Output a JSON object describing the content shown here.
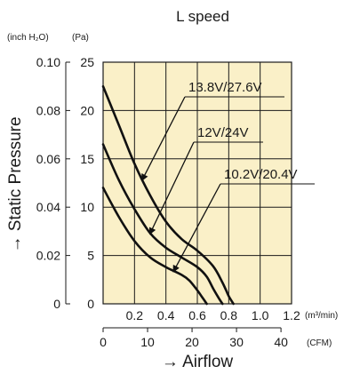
{
  "chart_data": {
    "type": "line",
    "title": "L speed",
    "ylabel": "→ Static Pressure",
    "xlabel": "→ Airflow",
    "y_units": {
      "inch": "(inch H₂O)",
      "pa": "(Pa)"
    },
    "x_units": {
      "m3": "(m³/min)",
      "cfm": "(CFM)"
    },
    "y_inch_ticks": [
      "0.10",
      "0.08",
      "0.06",
      "0.04",
      "0.02",
      "0"
    ],
    "y_pa_ticks": [
      "25",
      "20",
      "15",
      "10",
      "5",
      "0"
    ],
    "x_m3_ticks": [
      "0.2",
      "0.4",
      "0.6",
      "0.8",
      "1.0",
      "1.2"
    ],
    "x_cfm_ticks": [
      "0",
      "10",
      "20",
      "30",
      "40"
    ],
    "xlim": [
      0,
      1.2
    ],
    "ylim": [
      0,
      25
    ],
    "grid": true,
    "background": "#faf0c8",
    "series": [
      {
        "name": "13.8V/27.6V",
        "x": [
          0,
          0.1,
          0.2,
          0.3,
          0.4,
          0.5,
          0.6,
          0.7,
          0.76,
          0.8,
          0.83
        ],
        "y": [
          22.5,
          18.5,
          14.5,
          11.2,
          8.5,
          6.7,
          5.5,
          3.9,
          2.2,
          0.8,
          0
        ]
      },
      {
        "name": "12V/24V",
        "x": [
          0,
          0.1,
          0.2,
          0.3,
          0.4,
          0.5,
          0.6,
          0.66,
          0.7,
          0.74,
          0.76
        ],
        "y": [
          16.5,
          12.8,
          9.8,
          7.3,
          5.8,
          4.8,
          3.8,
          2.8,
          1.6,
          0.5,
          0
        ]
      },
      {
        "name": "10.2V/20.4V",
        "x": [
          0,
          0.1,
          0.2,
          0.3,
          0.4,
          0.5,
          0.55,
          0.6,
          0.63,
          0.66
        ],
        "y": [
          12,
          9.0,
          6.5,
          4.8,
          3.8,
          3.0,
          2.4,
          1.4,
          0.7,
          0
        ]
      }
    ],
    "legend": [
      "13.8V/27.6V",
      "12V/24V",
      "10.2V/20.4V"
    ]
  }
}
